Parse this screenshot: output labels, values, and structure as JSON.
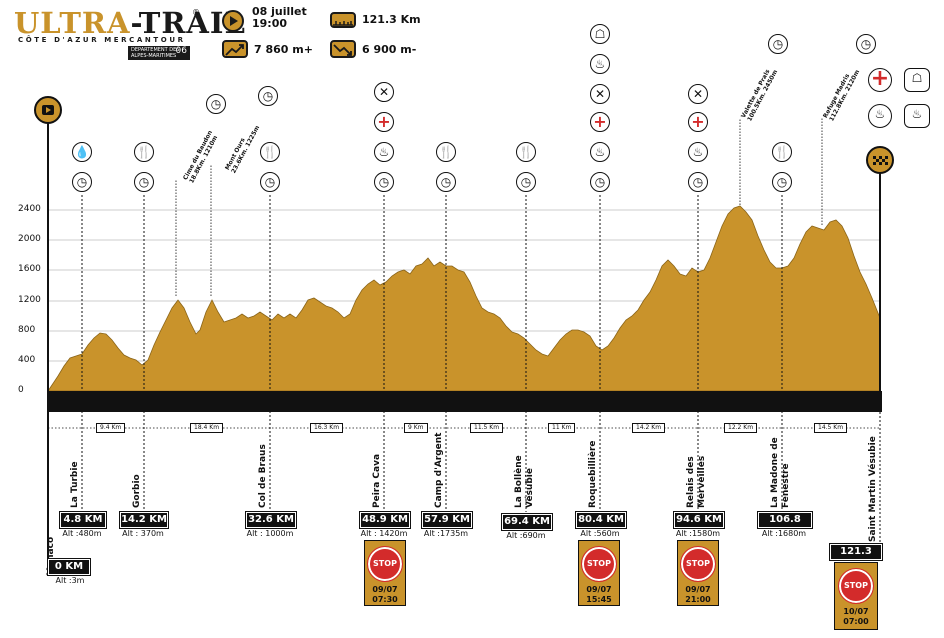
{
  "header": {
    "logo_ultra": "ULTRA",
    "logo_trail": "-TRAIL",
    "logo_reg": "®",
    "logo_sub": "CÔTE D'AZUR MERCANTOUR",
    "dept_text": "DEPARTEMENT DES ALPES-MARITIMES",
    "dept_num": "06"
  },
  "stats": {
    "date": "08 juillet",
    "time": "19:00",
    "distance": "121.3 Km",
    "elev_gain": "7 860 m+",
    "elev_loss": "6 900 m-"
  },
  "y_axis": [
    "2400",
    "2000",
    "1600",
    "1200",
    "800",
    "400",
    "0"
  ],
  "segments": [
    "9.4 Km",
    "18.4 Km",
    "16.3 Km",
    "9 Km",
    "11.5 Km",
    "11 Km",
    "14.2 Km",
    "12.2 Km",
    "14.5 Km"
  ],
  "checkpoints": [
    {
      "name": "Monaco",
      "km": "0 KM",
      "alt": "Alt :3m"
    },
    {
      "name": "La Turbie",
      "km": "4.8 KM",
      "alt": "Alt :480m"
    },
    {
      "name": "Gorbio",
      "km": "14.2 KM",
      "alt": "Alt : 370m"
    },
    {
      "name": "Col de Braus",
      "km": "32.6 KM",
      "alt": "Alt : 1000m"
    },
    {
      "name": "Peira Cava",
      "km": "48.9 KM",
      "alt": "Alt : 1420m"
    },
    {
      "name": "Camp d'Argent",
      "km": "57.9 KM",
      "alt": "Alt :1735m"
    },
    {
      "name": "La Bollène Vésubie",
      "km": "69.4 KM",
      "alt": "Alt :690m"
    },
    {
      "name": "Roquebillière",
      "km": "80.4 KM",
      "alt": "Alt :560m"
    },
    {
      "name": "Relais des Merveilles",
      "km": "94.6 KM",
      "alt": "Alt :1580m"
    },
    {
      "name": "La Madone de Fenestre",
      "km": "106.8 KM",
      "alt": "Alt :1680m"
    },
    {
      "name": "Saint Martin Vésubie",
      "km": "121.3 KM",
      "alt": ""
    }
  ],
  "peaks": [
    {
      "name": "Cime du Baudon",
      "detail": "18.8Km. 1210m"
    },
    {
      "name": "Mont Ours",
      "detail": "23.6Km. 1225m"
    },
    {
      "name": "Valette de Prals",
      "detail": "100.5Km. 2450m"
    },
    {
      "name": "Refuge Madris",
      "detail": "112.8Km. 2120m"
    }
  ],
  "stops": [
    {
      "sign": "STOP",
      "date": "09/07",
      "time": "07:30"
    },
    {
      "sign": "STOP",
      "date": "09/07",
      "time": "15:45"
    },
    {
      "sign": "STOP",
      "date": "09/07",
      "time": "21:00"
    },
    {
      "sign": "STOP",
      "date": "10/07",
      "time": "07:00"
    }
  ],
  "colors": {
    "accent": "#c9932b",
    "dark": "#1a1a1a",
    "stop_red": "#d32b2b"
  }
}
